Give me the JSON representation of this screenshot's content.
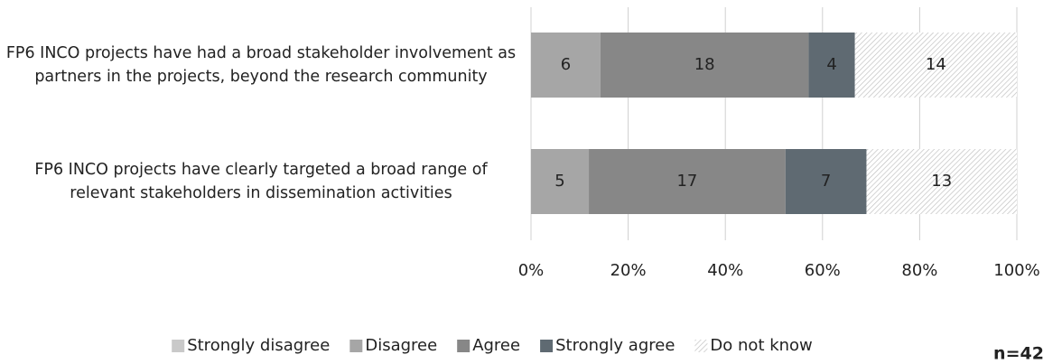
{
  "chart_data": {
    "type": "bar",
    "orientation": "horizontal",
    "stacked": "percent",
    "categories": [
      "FP6 INCO projects have had a broad stakeholder involvement as partners in the projects, beyond the research community",
      "FP6 INCO projects have clearly targeted a broad range of relevant stakeholders in dissemination activities"
    ],
    "series": [
      {
        "name": "Strongly disagree",
        "color": "#c9c9c9",
        "values": [
          0,
          0
        ]
      },
      {
        "name": "Disagree",
        "color": "#a6a6a6",
        "values": [
          6,
          5
        ]
      },
      {
        "name": "Agree",
        "color": "#878787",
        "values": [
          18,
          17
        ]
      },
      {
        "name": "Strongly agree",
        "color": "#5f6a72",
        "values": [
          4,
          7
        ]
      },
      {
        "name": "Do not know",
        "color": "#bdbdbd",
        "hatch": true,
        "values": [
          14,
          13
        ]
      }
    ],
    "xlim": [
      0,
      100
    ],
    "xticks": [
      {
        "value": 0,
        "label": "0%"
      },
      {
        "value": 20,
        "label": "20%"
      },
      {
        "value": 40,
        "label": "40%"
      },
      {
        "value": 60,
        "label": "60%"
      },
      {
        "value": 80,
        "label": "80%"
      },
      {
        "value": 100,
        "label": "100%"
      }
    ],
    "grid": true,
    "legend": "bottom",
    "annotation": "n=42"
  }
}
